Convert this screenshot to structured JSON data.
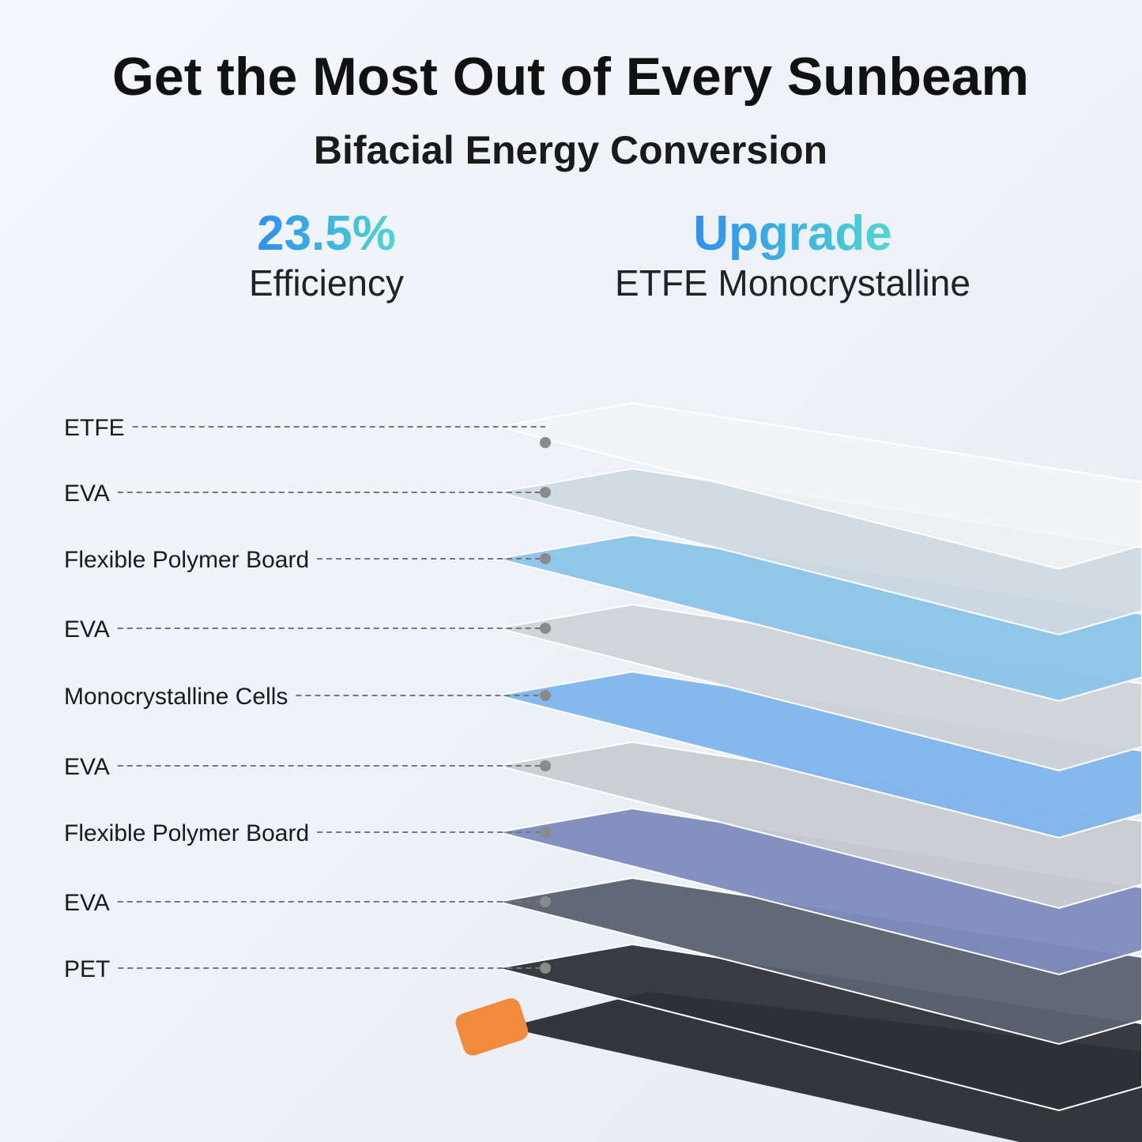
{
  "header": {
    "title": "Get the Most Out of Every Sunbeam",
    "subtitle": "Bifacial Energy Conversion"
  },
  "highlights": [
    {
      "value": "23.5%",
      "label": "Efficiency"
    },
    {
      "value": "Upgrade",
      "label": "ETFE Monocrystalline"
    }
  ],
  "layers": [
    "ETFE",
    "EVA",
    "Flexible Polymer Board",
    "EVA",
    "Monocrystalline Cells",
    "EVA",
    "Flexible Polymer Board",
    "EVA",
    "PET"
  ]
}
